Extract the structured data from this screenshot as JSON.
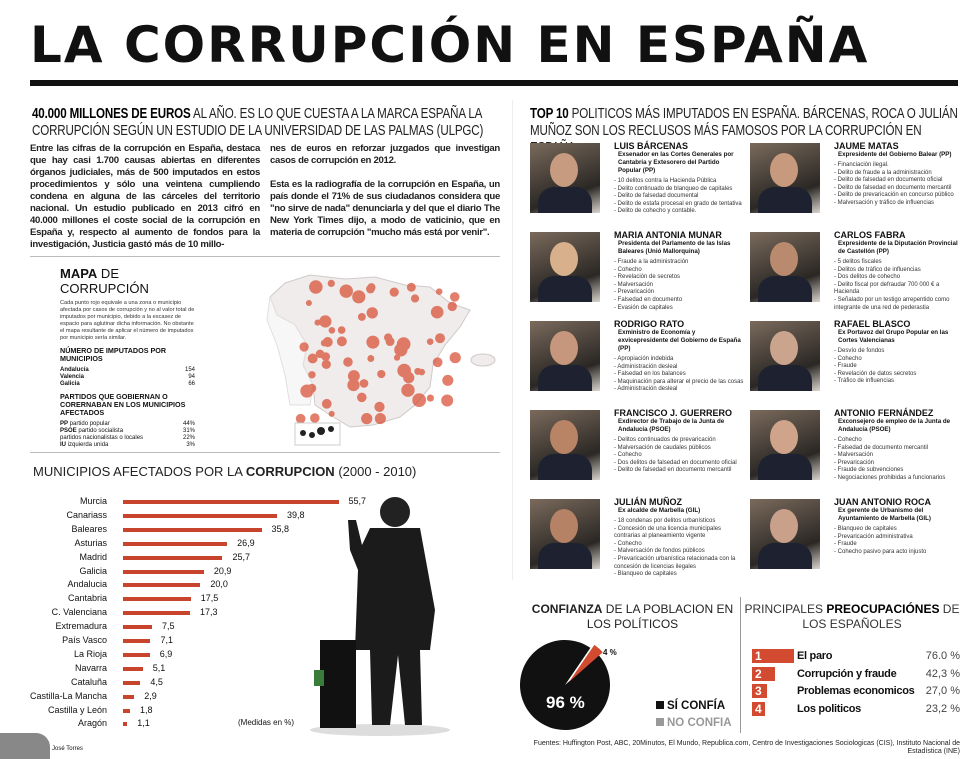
{
  "title": "LA CORRUPCIÓN EN ESPAÑA",
  "intro": {
    "head_bold": "40.000 MILLONES DE EUROS",
    "head_rest": " AL AÑO. ES LO QUE CUESTA A LA MARCA ESPAÑA LA CORRUPCIÓN SEGÚN UN ESTUDIO DE LA UNIVERSIDAD DE LAS PALMAS (ULPGC)",
    "col1": "Entre las cifras de la corrupción en España, destaca que hay casi 1.700 causas abiertas en diferentes órganos judiciales, más de 500 imputados en estos procedimientos y sólo una veintena cumpliendo condena en alguna de las cárceles del territorio nacional. Un estudio publicado en 2013 cifró en 40.000 millones el coste social de la corrupción en España y, respecto al aumento de fondos para la investigación, Justicia gastó más de 10 millo-",
    "col2a": "nes de euros en reforzar juzgados que investigan casos de corrupción en 2012.",
    "col2b": "Esta es la radiografía de la corrupción en España, un país donde el 71% de sus ciudadanos considera que \"no sirve de nada\" denunciarla y del que el diario The New York Times dijo, a modo de vaticinio, que en materia de corrupción \"mucho más está por venir\"."
  },
  "map": {
    "title_bold": "MAPA",
    "title_rest": " DE CORRUPCIÓN",
    "desc": "Cada punto rojo equivale a una zona o municipio afectada por casos de corrupción y no al valor total de imputados por municipio, debido a la escasez de espacio para aglutinar dicha información. No obstante el mapa resultante de aplicar el número de imputados por municipio sería similar.",
    "imputados_title": "NÚMERO DE IMPUTADOS POR MUNICIPIOS",
    "imputados": [
      {
        "name": "Andalucía",
        "value": "154"
      },
      {
        "name": "Valencia",
        "value": "94"
      },
      {
        "name": "Galicia",
        "value": "66"
      }
    ],
    "partidos_title": "PARTIDOS QUE GOBIERNAN O CORERNABAN EN LOS MUNICIPIOS AFECTADOS",
    "partidos": [
      {
        "bold": "PP",
        "name": " partido popular",
        "value": "44%"
      },
      {
        "bold": "PSOE",
        "name": " partido socialista",
        "value": "31%"
      },
      {
        "bold": "",
        "name": "partidos nacionalistas o locales",
        "value": "22%"
      },
      {
        "bold": "IU",
        "name": " izquierda unida",
        "value": "3%"
      }
    ]
  },
  "top10": {
    "head_bold": "TOP 10",
    "head_rest": " POLITICOS MÁS IMPUTADOS EN ESPAÑA. BÁRCENAS, ROCA O JULIÁN MUÑOZ SON LOS RECLUSOS MÁS FAMOSOS POR LA CORRUPCIÓN EN ESPAÑA",
    "politicians": [
      {
        "name": "LUIS BÁRCENAS",
        "role": "Exsenador en las Cortes Generales por Cantabria y Extesorero del Partido Popular (PP)",
        "charges": [
          "- 10 delitos contra la Hacienda Pública",
          "- Delito continuado de blanqueo de capitales",
          "- Delito de falsedad documental",
          "- Delito de estafa procesal en grado de tentativa",
          "- Delito de cohecho y contable."
        ]
      },
      {
        "name": "JAUME MATAS",
        "role": "Expresidente del Gobierno Balear (PP)",
        "charges": [
          "- Financiación ilegal.",
          "- Delito de fraude a la administración",
          "- Delito de falsedad en documento oficial",
          "- Delito de falsedad en documento mercantil",
          "- Delito de prevaricación en concurso público",
          "- Malversación y tráfico de influencias"
        ]
      },
      {
        "name": "MARIA ANTONIA MUNAR",
        "role": "Presidenta del Parlamento de las Islas Baleares (Unió Mallorquina)",
        "charges": [
          "- Fraude a la administración",
          "- Cohecho",
          "- Revelación de secretos",
          "- Malversación",
          "- Prevaricación",
          "- Falsedad en documento",
          "- Evasión de capitales"
        ]
      },
      {
        "name": "CARLOS FABRA",
        "role": "Expresidente de la Diputación Provincial de Castellón (PP)",
        "charges": [
          "- 5 delitos fiscales",
          "- Delitos de tráfico de influencias",
          "- Dos delitos de cohecho",
          "- Delito fiscal por defraudar 700 000 € a Hacienda",
          "- Señalado por un testigo arrepentido como integrante de una red de pederastia"
        ]
      },
      {
        "name": "RODRIGO RATO",
        "role": "Exministro de Economía y exvicepresidente del Gobierno de España (PP)",
        "charges": [
          "- Apropiación indebida",
          "- Administración desleal",
          "- Falsedad en los balances",
          "- Maquinación para alterar el precio de las cosas",
          "- Administración desleal"
        ]
      },
      {
        "name": "RAFAEL BLASCO",
        "role": "Ex Portavoz del Grupo Popular en las Cortes Valencianas",
        "charges": [
          "- Desvío de fondos",
          "- Cohecho",
          "- Fraude",
          "- Revelación de datos secretos",
          "- Tráfico de influencias"
        ]
      },
      {
        "name": "FRANCISCO J. GUERRERO",
        "role": "Exdirector de Trabajo de la Junta de Andalucía (PSOE)",
        "charges": [
          "- Delitos continuados de prevaricación",
          "- Malversación de caudales públicos",
          "- Cohecho",
          "- Dos delitos de falsedad en documento oficial",
          "- Delito de falsedad en documento mercantil"
        ]
      },
      {
        "name": "ANTONIO FERNÁNDEZ",
        "role": "Exconsejero de empleo de la Junta de Andalucía (PSOE)",
        "charges": [
          "- Cohecho",
          "- Falsedad de documento mercantil",
          "- Malversación",
          "- Prevaricación",
          "- Fraude de subvenciones",
          "- Negociaciones prohibidas a funcionarios"
        ]
      },
      {
        "name": "JULIÁN MUÑOZ",
        "role": "Ex alcalde de Marbella (GIL)",
        "charges": [
          "- 18 condenas por delitos urbanísticos",
          "- Concesión de una licencia municipales contrarias al planeamiento vigente",
          "- Cohecho",
          "- Malversación de fondos públicos",
          "- Prevaricación urbanística relacionada con la concesión de licencias ilegales",
          "- Blanqueo de capitales"
        ]
      },
      {
        "name": "JUAN ANTONIO ROCA",
        "role": "Ex gerente de Urbanismo del Ayuntamiento de Marbella (GIL)",
        "charges": [
          "- Blanqueo de capitales",
          "- Prevaricación administrativa",
          "- Fraude",
          "- Cohecho pasivo para acto injusto"
        ]
      }
    ]
  },
  "confianza": {
    "title_bold": "CONFIANZA",
    "title_rest": " DE LA POBLACION EN LOS POLÍTICOS",
    "legend": [
      {
        "label": "SÍ CONFÍA",
        "color": "#111111"
      },
      {
        "label": "NO CONFIA",
        "color": "#999999"
      }
    ],
    "big_label": "96 %",
    "small_label": "4 %"
  },
  "preocupaciones": {
    "title_pre": "PRINCIPALES ",
    "title_bold": "PREOCUPACIÓNES",
    "title_rest": " DE LOS ESPAÑOLES"
  },
  "footer": {
    "author": "José Torres",
    "sources": "Fuentes: Huffington Post, ABC, 20Minutos, El Mundo, Republica.com, Centro de Investigaciones Sociologicas (CIS), Instituto Nacional de Estadística (INE)"
  },
  "chart_data": [
    {
      "type": "bar",
      "title": "MUNICIPIOS AFECTADOS POR LA CORRUPCION (2000 - 2010)",
      "title_pre": "MUNICIPIOS AFECTADOS POR LA ",
      "title_bold": "CORRUPCION",
      "title_rest": " (2000 - 2010)",
      "unit_note": "(Medidas en %)",
      "color": "#c9442c",
      "categories": [
        "Murcia",
        "Canariass",
        "Baleares",
        "Asturias",
        "Madrid",
        "Galicia",
        "Andalucia",
        "Cantabria",
        "C. Valenciana",
        "Extremadura",
        "País Vasco",
        "La Rioja",
        "Navarra",
        "Cataluña",
        "Castilla-La Mancha",
        "Castilla y León",
        "Aragón"
      ],
      "values": [
        55.7,
        39.8,
        35.8,
        26.9,
        25.7,
        20.9,
        20.0,
        17.5,
        17.3,
        7.5,
        7.1,
        6.9,
        5.1,
        4.5,
        2.9,
        1.8,
        1.1
      ],
      "labels": [
        "55,7",
        "39,8",
        "35,8",
        "26,9",
        "25,7",
        "20,9",
        "20,0",
        "17,5",
        "17,3",
        "7,5",
        "7,1",
        "6,9",
        "5,1",
        "4,5",
        "2,9",
        "1,8",
        "1,1"
      ]
    },
    {
      "type": "pie",
      "title": "CONFIANZA DE LA POBLACION EN LOS POLÍTICOS",
      "slices": [
        {
          "label": "96 %",
          "value": 96,
          "color": "#111111"
        },
        {
          "label": "4 %",
          "value": 4,
          "color": "#d24a2f"
        }
      ]
    },
    {
      "type": "bar",
      "title": "PRINCIPALES PREOCUPACIÓNES DE LOS ESPAÑOLES",
      "color": "#d24a2f",
      "categories": [
        "El paro",
        "Corrupción y fraude",
        "Problemas economicos",
        "Los politicos"
      ],
      "ranks": [
        "1",
        "2",
        "3",
        "4"
      ],
      "values": [
        76.0,
        42.3,
        27.0,
        23.2
      ],
      "labels": [
        "76.0 %",
        "42,3 %",
        "27,0 %",
        "23,2 %"
      ]
    }
  ]
}
